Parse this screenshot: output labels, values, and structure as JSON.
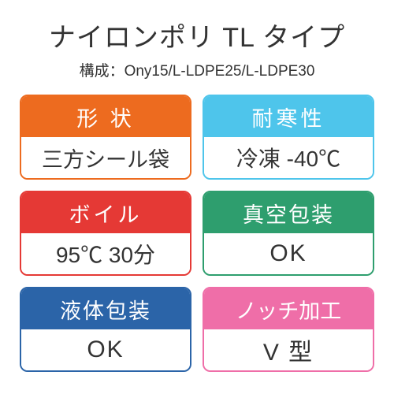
{
  "title": "ナイロンポリ TL タイプ",
  "subtitle": "構成：Ony15/L-LDPE25/L-LDPE30",
  "text_color": "#333333",
  "background_color": "#ffffff",
  "header_text_color": "#ffffff",
  "cards": [
    {
      "label": "形 状",
      "value": "三方シール袋",
      "color": "#ed6b1f",
      "header_ls": "4px",
      "value_fs": "27px",
      "value_ls": "0px"
    },
    {
      "label": "耐寒性",
      "value": "冷凍 -40℃",
      "color": "#4ec5eb",
      "header_ls": "4px",
      "value_fs": "28px",
      "value_ls": "0px"
    },
    {
      "label": "ボイル",
      "value": "95℃ 30分",
      "color": "#e53935",
      "header_ls": "4px",
      "value_fs": "28px",
      "value_ls": "0px"
    },
    {
      "label": "真空包装",
      "value": "OK",
      "color": "#2e9e6e",
      "header_ls": "2px",
      "value_fs": "30px",
      "value_ls": "2px"
    },
    {
      "label": "液体包装",
      "value": "OK",
      "color": "#2b64a8",
      "header_ls": "2px",
      "value_fs": "30px",
      "value_ls": "2px"
    },
    {
      "label": "ノッチ加工",
      "value": "V 型",
      "color": "#ef6ea8",
      "header_ls": "0px",
      "value_fs": "30px",
      "value_ls": "2px"
    }
  ]
}
